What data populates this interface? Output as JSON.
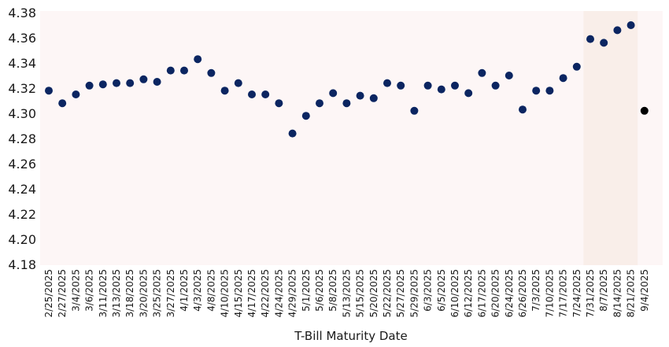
{
  "chart_data": {
    "type": "scatter",
    "title": "",
    "xlabel": "T-Bill Maturity Date",
    "ylabel": "",
    "ylim": [
      4.18,
      4.38
    ],
    "yticks": [
      "4.18",
      "4.20",
      "4.22",
      "4.24",
      "4.26",
      "4.28",
      "4.30",
      "4.32",
      "4.34",
      "4.36",
      "4.38"
    ],
    "grid": false,
    "legend": "none",
    "categories": [
      "2/25/2025",
      "2/27/2025",
      "3/4/2025",
      "3/6/2025",
      "3/11/2025",
      "3/13/2025",
      "3/18/2025",
      "3/20/2025",
      "3/25/2025",
      "3/27/2025",
      "4/1/2025",
      "4/3/2025",
      "4/8/2025",
      "4/10/2025",
      "4/15/2025",
      "4/17/2025",
      "4/22/2025",
      "4/24/2025",
      "4/29/2025",
      "5/1/2025",
      "5/6/2025",
      "5/8/2025",
      "5/13/2025",
      "5/15/2025",
      "5/20/2025",
      "5/22/2025",
      "5/27/2025",
      "5/29/2025",
      "6/3/2025",
      "6/5/2025",
      "6/10/2025",
      "6/12/2025",
      "6/17/2025",
      "6/20/2025",
      "6/24/2025",
      "6/26/2025",
      "7/3/2025",
      "7/10/2025",
      "7/17/2025",
      "7/24/2025",
      "7/31/2025",
      "8/7/2025",
      "8/14/2025",
      "8/21/2025",
      "9/4/2025"
    ],
    "values": [
      4.318,
      4.308,
      4.315,
      4.322,
      4.323,
      4.324,
      4.324,
      4.327,
      4.325,
      4.334,
      4.334,
      4.343,
      4.332,
      4.318,
      4.324,
      4.315,
      4.315,
      4.308,
      4.284,
      4.298,
      4.308,
      4.316,
      4.308,
      4.314,
      4.312,
      4.324,
      4.322,
      4.302,
      4.322,
      4.319,
      4.322,
      4.316,
      4.332,
      4.322,
      4.33,
      4.303,
      4.318,
      4.318,
      4.328,
      4.337,
      4.359,
      4.356,
      4.366,
      4.37,
      4.302
    ],
    "highlight_range": [
      "7/31/2025",
      "8/21/2025"
    ],
    "highlight_point": "9/4/2025",
    "colors": {
      "point": "#0b2561",
      "highlight_point": "#000000",
      "plot_background": "#fdf6f6",
      "highlight_band": "#f9eee9"
    }
  }
}
